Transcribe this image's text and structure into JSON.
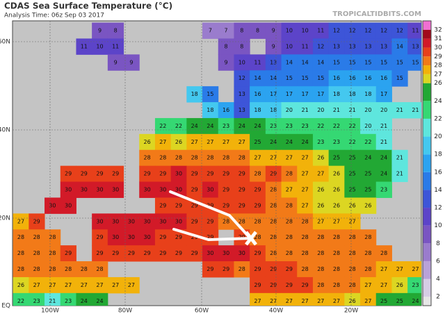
{
  "header": {
    "title": "CDAS Sea Surface Temperature (°C)",
    "subtitle": "Analysis Time: 06z Sep 03 2017",
    "source": "TROPICALTIDBITS.COM"
  },
  "map": {
    "lat_labels": [
      "60N",
      "40N",
      "20N",
      "EQ"
    ],
    "lon_labels": [
      "100W",
      "80W",
      "60W",
      "40W",
      "20W"
    ],
    "sst_rows": [
      [
        null,
        null,
        null,
        null,
        null,
        9,
        8,
        null,
        null,
        null,
        null,
        null,
        7,
        7,
        8,
        8,
        9,
        10,
        10,
        11,
        12,
        12,
        12,
        12,
        12,
        11
      ],
      [
        null,
        null,
        null,
        null,
        11,
        10,
        11,
        null,
        null,
        null,
        null,
        null,
        null,
        8,
        8,
        null,
        9,
        10,
        11,
        12,
        13,
        13,
        13,
        13,
        14,
        13
      ],
      [
        null,
        null,
        null,
        null,
        null,
        null,
        9,
        9,
        null,
        null,
        null,
        null,
        null,
        9,
        10,
        11,
        13,
        14,
        14,
        14,
        15,
        15,
        15,
        15,
        15,
        15
      ],
      [
        null,
        null,
        null,
        null,
        null,
        null,
        null,
        null,
        null,
        null,
        null,
        null,
        null,
        null,
        12,
        14,
        14,
        15,
        15,
        15,
        16,
        16,
        16,
        16,
        15,
        null
      ],
      [
        null,
        null,
        null,
        null,
        null,
        null,
        null,
        null,
        null,
        null,
        null,
        18,
        15,
        null,
        13,
        16,
        17,
        17,
        17,
        17,
        18,
        18,
        18,
        17,
        null,
        null
      ],
      [
        null,
        null,
        null,
        null,
        null,
        null,
        null,
        null,
        null,
        null,
        null,
        null,
        18,
        16,
        13,
        18,
        18,
        20,
        21,
        20,
        21,
        21,
        20,
        20,
        21,
        21
      ],
      [
        null,
        null,
        null,
        null,
        null,
        null,
        null,
        null,
        null,
        22,
        22,
        24,
        24,
        23,
        24,
        24,
        23,
        23,
        23,
        22,
        22,
        22,
        20,
        21,
        null,
        null
      ],
      [
        null,
        null,
        null,
        null,
        null,
        null,
        null,
        null,
        26,
        27,
        26,
        27,
        27,
        27,
        27,
        25,
        24,
        24,
        24,
        23,
        23,
        22,
        22,
        21,
        null,
        null
      ],
      [
        null,
        null,
        null,
        null,
        null,
        null,
        null,
        null,
        28,
        28,
        28,
        28,
        28,
        28,
        28,
        27,
        27,
        27,
        27,
        26,
        25,
        25,
        24,
        24,
        21,
        null
      ],
      [
        null,
        null,
        null,
        29,
        29,
        29,
        29,
        null,
        29,
        29,
        30,
        29,
        29,
        29,
        29,
        28,
        29,
        28,
        27,
        27,
        26,
        25,
        25,
        24,
        21,
        null
      ],
      [
        null,
        null,
        null,
        30,
        30,
        30,
        30,
        null,
        30,
        30,
        30,
        29,
        30,
        29,
        29,
        29,
        28,
        27,
        27,
        26,
        26,
        25,
        25,
        23,
        null,
        null
      ],
      [
        null,
        null,
        30,
        30,
        null,
        null,
        null,
        null,
        null,
        29,
        29,
        29,
        29,
        29,
        29,
        29,
        28,
        28,
        27,
        26,
        26,
        26,
        26,
        null,
        null,
        null
      ],
      [
        27,
        29,
        null,
        null,
        null,
        30,
        30,
        30,
        30,
        30,
        30,
        29,
        29,
        28,
        28,
        28,
        28,
        28,
        28,
        27,
        27,
        27,
        null,
        null,
        null,
        null
      ],
      [
        28,
        28,
        28,
        null,
        null,
        29,
        30,
        30,
        30,
        29,
        29,
        29,
        29,
        null,
        29,
        28,
        28,
        28,
        28,
        28,
        28,
        28,
        28,
        null,
        null,
        null
      ],
      [
        28,
        28,
        28,
        29,
        null,
        29,
        29,
        29,
        29,
        29,
        29,
        29,
        30,
        30,
        30,
        29,
        28,
        28,
        28,
        28,
        28,
        28,
        28,
        28,
        null,
        null
      ],
      [
        28,
        28,
        28,
        28,
        28,
        28,
        null,
        null,
        null,
        null,
        null,
        null,
        29,
        29,
        28,
        29,
        29,
        29,
        28,
        28,
        28,
        28,
        28,
        27,
        27,
        27
      ],
      [
        26,
        27,
        27,
        27,
        27,
        27,
        27,
        27,
        null,
        null,
        null,
        null,
        null,
        null,
        null,
        29,
        29,
        29,
        29,
        28,
        28,
        28,
        27,
        27,
        26,
        23
      ],
      [
        22,
        23,
        21,
        23,
        24,
        24,
        null,
        null,
        null,
        null,
        null,
        null,
        null,
        null,
        null,
        27,
        27,
        27,
        27,
        27,
        27,
        26,
        27,
        25,
        25,
        24
      ]
    ]
  },
  "colorbar": {
    "lim": [
      1,
      33
    ],
    "ticks": [
      2,
      4,
      6,
      8,
      10,
      12,
      14,
      16,
      18,
      20,
      22,
      24,
      26,
      27,
      28,
      29,
      30,
      31,
      32
    ],
    "colors": [
      "#d6cde6",
      "#b9a2d8",
      "#9a7ccd",
      "#7a55c2",
      "#5c44c9",
      "#3d55d8",
      "#2a7be8",
      "#2ba3f0",
      "#44c8ef",
      "#5ee6dd",
      "#35d873",
      "#22a834",
      "#dcd622",
      "#f2b20a",
      "#f27a18",
      "#e8401a",
      "#d21a28",
      "#a20a1c",
      "#f06fd2"
    ],
    "under_color": "#e6e6e6"
  }
}
